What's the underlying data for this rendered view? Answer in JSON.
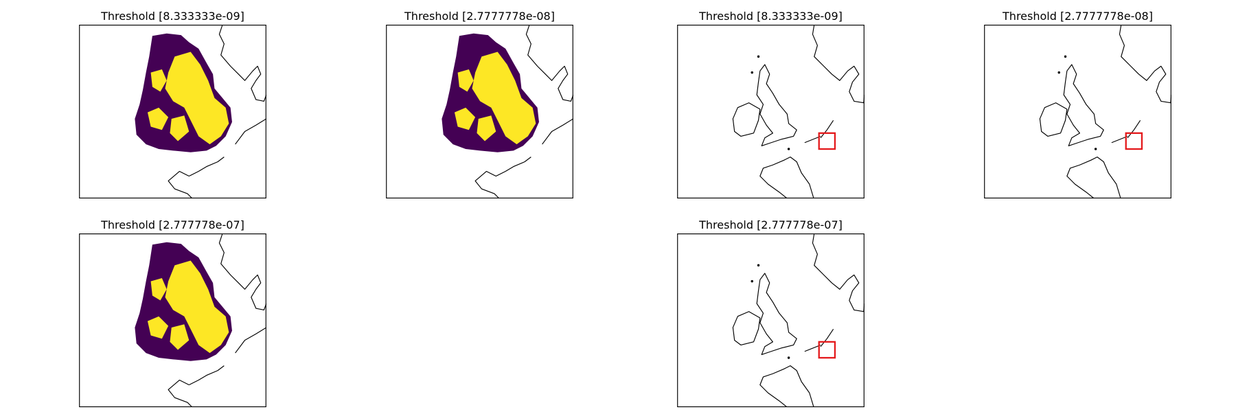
{
  "panels": [
    {
      "title": "Threshold [8.333333e-09]"
    },
    {
      "title": "Threshold [2.7777778e-08]"
    },
    {
      "title": "Threshold [8.333333e-09]"
    },
    {
      "title": "Threshold [2.7777778e-08]"
    },
    {
      "title": "Threshold [2.777778e-07]"
    },
    {
      "title": "Threshold [2.777778e-07]"
    }
  ]
}
